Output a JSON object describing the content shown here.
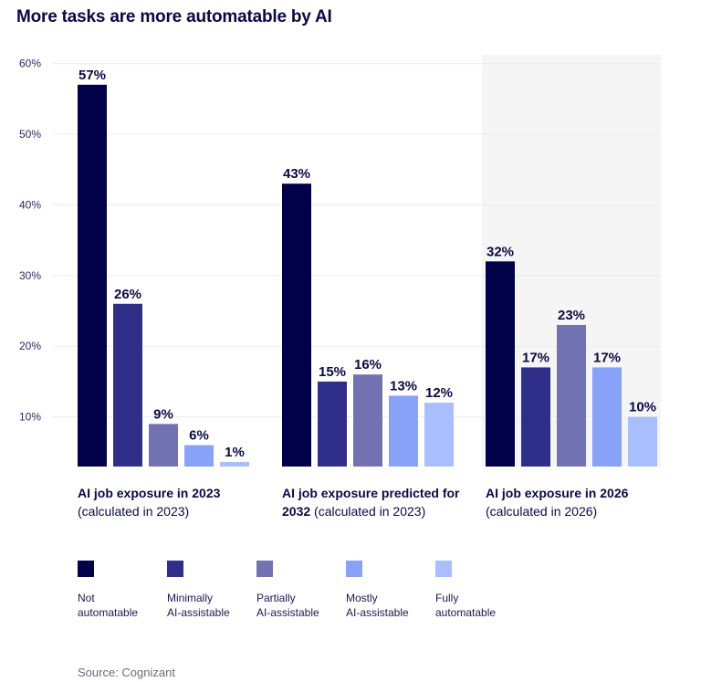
{
  "chart_data": {
    "type": "bar",
    "title": "More tasks are more automatable by AI",
    "ylim": [
      0,
      60
    ],
    "yticks": [
      "10%",
      "20%",
      "30%",
      "40%",
      "50%",
      "60%"
    ],
    "grid": true,
    "legend_placement": "bottom",
    "highlighted_group": 2,
    "groups": [
      {
        "label_bold": "AI job exposure in 2023",
        "label_rest": "(calculated in 2023)",
        "values": [
          57,
          26,
          9,
          6,
          1
        ]
      },
      {
        "label_bold": "AI job exposure predicted for 2032",
        "label_rest": "(calculated in 2023)",
        "values": [
          43,
          15,
          16,
          13,
          12
        ]
      },
      {
        "label_bold": "AI job exposure in 2026",
        "label_rest": "(calculated in 2026)",
        "values": [
          32,
          17,
          23,
          17,
          10
        ]
      }
    ],
    "series": [
      {
        "name": "Not automatable",
        "color": "#03004a"
      },
      {
        "name": "Minimally AI-assistable",
        "color": "#2f2f8a"
      },
      {
        "name": "Partially AI-assistable",
        "color": "#7272b2"
      },
      {
        "name": "Mostly AI-assistable",
        "color": "#88a2fa"
      },
      {
        "name": "Fully automatable",
        "color": "#a9bffd"
      }
    ],
    "legend_lines": [
      [
        "Not",
        "automatable"
      ],
      [
        "Minimally",
        "AI-assistable"
      ],
      [
        "Partially",
        "AI-assistable"
      ],
      [
        "Mostly",
        "AI-assistable"
      ],
      [
        "Fully",
        "automatable"
      ]
    ],
    "value_suffix": "%",
    "source": "Source: Cognizant"
  }
}
